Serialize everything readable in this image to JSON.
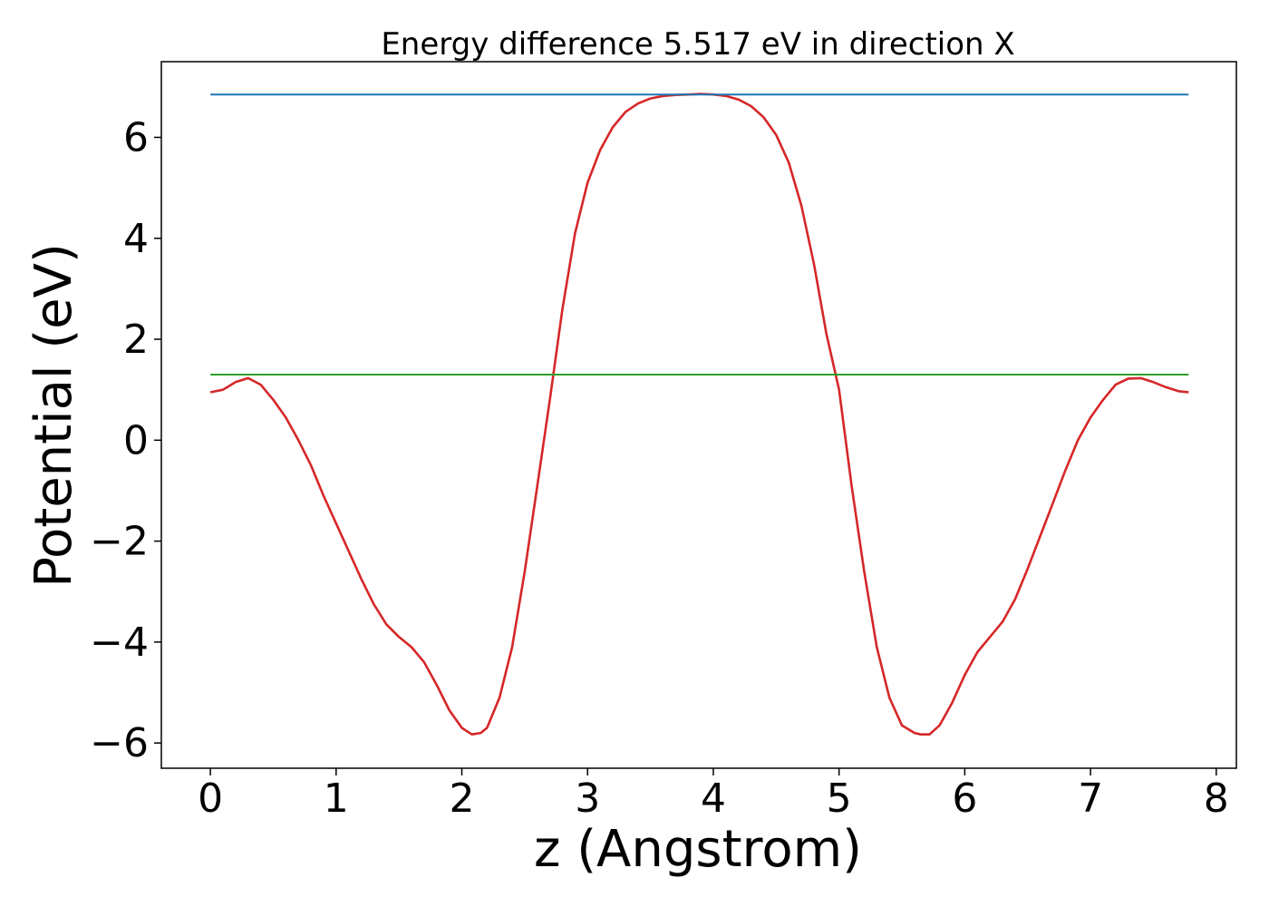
{
  "chart_data": {
    "type": "line",
    "title": "Energy difference 5.517 eV in direction X",
    "xlabel": "z (Angstrom)",
    "ylabel": "Potential (eV)",
    "xlim": [
      -0.39,
      8.16
    ],
    "ylim": [
      -6.5,
      7.5
    ],
    "xticks": [
      0,
      1,
      2,
      3,
      4,
      5,
      6,
      7,
      8
    ],
    "xtick_labels": [
      "0",
      "1",
      "2",
      "3",
      "4",
      "5",
      "6",
      "7",
      "8"
    ],
    "yticks": [
      -6,
      -4,
      -2,
      0,
      2,
      4,
      6
    ],
    "ytick_labels": [
      "−6",
      "−4",
      "−2",
      "0",
      "2",
      "4",
      "6"
    ],
    "grid": false,
    "legend": "none",
    "series": [
      {
        "color": "#d62728",
        "x": [
          0.0,
          0.1,
          0.2,
          0.3,
          0.4,
          0.5,
          0.6,
          0.7,
          0.8,
          0.9,
          1.0,
          1.1,
          1.2,
          1.3,
          1.4,
          1.5,
          1.6,
          1.7,
          1.8,
          1.9,
          2.0,
          2.08,
          2.15,
          2.2,
          2.3,
          2.4,
          2.5,
          2.6,
          2.7,
          2.8,
          2.9,
          3.0,
          3.1,
          3.2,
          3.3,
          3.4,
          3.5,
          3.6,
          3.7,
          3.8,
          3.9,
          4.0,
          4.1,
          4.2,
          4.3,
          4.4,
          4.5,
          4.6,
          4.7,
          4.8,
          4.9,
          5.0,
          5.1,
          5.2,
          5.3,
          5.4,
          5.5,
          5.6,
          5.65,
          5.72,
          5.8,
          5.9,
          6.0,
          6.1,
          6.2,
          6.3,
          6.4,
          6.5,
          6.6,
          6.7,
          6.8,
          6.9,
          7.0,
          7.1,
          7.2,
          7.3,
          7.4,
          7.5,
          7.6,
          7.7,
          7.78
        ],
        "y": [
          0.95,
          1.0,
          1.15,
          1.23,
          1.1,
          0.8,
          0.45,
          0.0,
          -0.5,
          -1.1,
          -1.65,
          -2.2,
          -2.75,
          -3.25,
          -3.65,
          -3.9,
          -4.1,
          -4.4,
          -4.85,
          -5.35,
          -5.7,
          -5.83,
          -5.8,
          -5.7,
          -5.1,
          -4.1,
          -2.6,
          -0.9,
          0.8,
          2.6,
          4.1,
          5.1,
          5.75,
          6.2,
          6.5,
          6.67,
          6.77,
          6.82,
          6.84,
          6.85,
          6.86,
          6.85,
          6.82,
          6.75,
          6.62,
          6.4,
          6.05,
          5.5,
          4.65,
          3.5,
          2.1,
          1.0,
          -0.9,
          -2.6,
          -4.1,
          -5.1,
          -5.65,
          -5.8,
          -5.83,
          -5.83,
          -5.65,
          -5.2,
          -4.65,
          -4.2,
          -3.9,
          -3.6,
          -3.15,
          -2.55,
          -1.9,
          -1.25,
          -0.6,
          0.0,
          0.45,
          0.8,
          1.1,
          1.22,
          1.23,
          1.15,
          1.05,
          0.97,
          0.95
        ]
      },
      {
        "color": "#1f77b4",
        "x": [
          0.0,
          7.78
        ],
        "y": [
          6.85,
          6.85
        ]
      },
      {
        "color": "#2ca02c",
        "x": [
          0.0,
          7.78
        ],
        "y": [
          1.3,
          1.3
        ]
      }
    ]
  }
}
